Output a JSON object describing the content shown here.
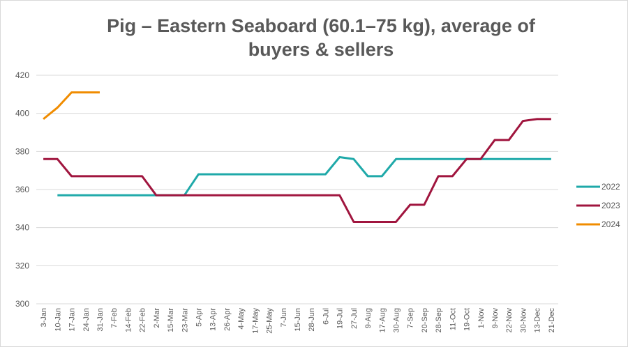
{
  "chart_data": {
    "type": "line",
    "title": "Pig – Eastern Seaboard (60.1–75 kg), average of buyers & sellers",
    "categories": [
      "3-Jan",
      "10-Jan",
      "17-Jan",
      "24-Jan",
      "31-Jan",
      "7-Feb",
      "14-Feb",
      "22-Feb",
      "2-Mar",
      "15-Mar",
      "23-Mar",
      "5-Apr",
      "13-Apr",
      "26-Apr",
      "4-May",
      "17-May",
      "25-May",
      "7-Jun",
      "15-Jun",
      "28-Jun",
      "6-Jul",
      "19-Jul",
      "27-Jul",
      "9-Aug",
      "17-Aug",
      "30-Aug",
      "7-Sep",
      "20-Sep",
      "28-Sep",
      "11-Oct",
      "19-Oct",
      "1-Nov",
      "9-Nov",
      "22-Nov",
      "30-Nov",
      "13-Dec",
      "21-Dec"
    ],
    "series": [
      {
        "name": "2022",
        "color": "#1fa9a9",
        "values": [
          null,
          357,
          357,
          357,
          357,
          357,
          357,
          357,
          357,
          357,
          357,
          368,
          368,
          368,
          368,
          368,
          368,
          368,
          368,
          368,
          368,
          377,
          376,
          367,
          367,
          376,
          376,
          376,
          376,
          376,
          376,
          376,
          376,
          376,
          376,
          376,
          376
        ]
      },
      {
        "name": "2023",
        "color": "#a0153e",
        "values": [
          376,
          376,
          367,
          367,
          367,
          367,
          367,
          367,
          357,
          357,
          357,
          357,
          357,
          357,
          357,
          357,
          357,
          357,
          357,
          357,
          357,
          357,
          343,
          343,
          343,
          343,
          352,
          352,
          367,
          367,
          376,
          376,
          386,
          386,
          396,
          397,
          397
        ]
      },
      {
        "name": "2024",
        "color": "#f08c00",
        "values": [
          397,
          403,
          411,
          411,
          411,
          null,
          null,
          null,
          null,
          null,
          null,
          null,
          null,
          null,
          null,
          null,
          null,
          null,
          null,
          null,
          null,
          null,
          null,
          null,
          null,
          null,
          null,
          null,
          null,
          null,
          null,
          null,
          null,
          null,
          null,
          null,
          null
        ]
      }
    ],
    "ylim": [
      300,
      420
    ],
    "yticks": [
      300,
      320,
      340,
      360,
      380,
      400,
      420
    ],
    "grid": true,
    "legend": "right"
  }
}
